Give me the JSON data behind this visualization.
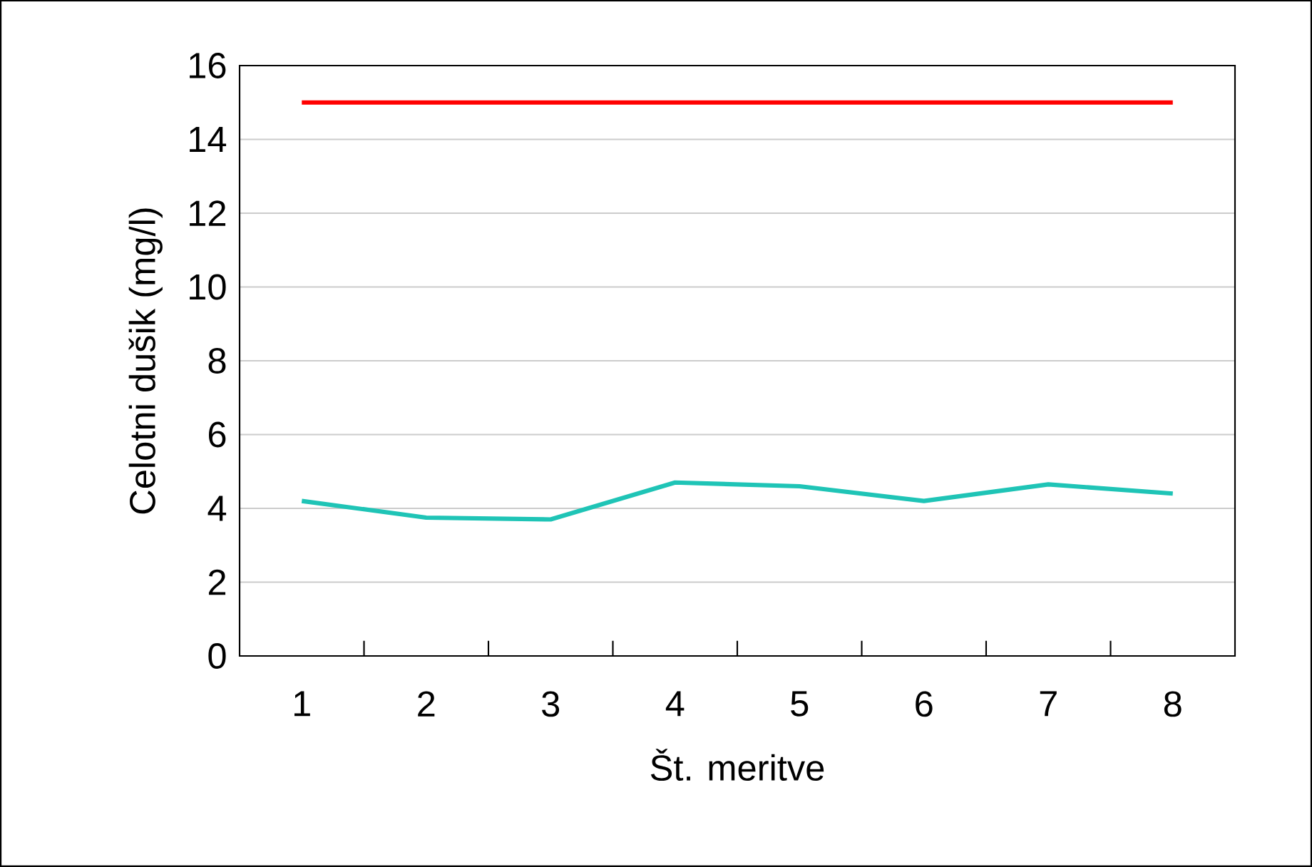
{
  "chart_data": {
    "type": "line",
    "xlabel": "Št. meritve",
    "ylabel": "Celotni dušik (mg/l)",
    "categories": [
      "1",
      "2",
      "3",
      "4",
      "5",
      "6",
      "7",
      "8"
    ],
    "series": [
      {
        "color": "#ff0000",
        "values": [
          15,
          15,
          15,
          15,
          15,
          15,
          15,
          15
        ]
      },
      {
        "color": "#1fc4b6",
        "values": [
          4.2,
          3.75,
          3.7,
          4.7,
          4.6,
          4.2,
          4.65,
          4.4
        ]
      }
    ],
    "ylim": [
      0,
      16
    ],
    "yticks": [
      0,
      2,
      4,
      6,
      8,
      10,
      12,
      14,
      16
    ],
    "grid": "y",
    "marker": "none",
    "line_style": "solid"
  }
}
